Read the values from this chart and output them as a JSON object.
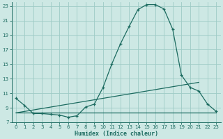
{
  "xlabel": "Humidex (Indice chaleur)",
  "background_color": "#cde8e4",
  "grid_color": "#9ecbc6",
  "line_color": "#1c6b60",
  "xlim": [
    -0.5,
    23.5
  ],
  "ylim": [
    7,
    23.5
  ],
  "xticks": [
    0,
    1,
    2,
    3,
    4,
    5,
    6,
    7,
    8,
    9,
    10,
    11,
    12,
    13,
    14,
    15,
    16,
    17,
    18,
    19,
    20,
    21,
    22,
    23
  ],
  "yticks": [
    7,
    9,
    11,
    13,
    15,
    17,
    19,
    21,
    23
  ],
  "line1_x": [
    0,
    1,
    2,
    3,
    4,
    5,
    6,
    7,
    8,
    9,
    10,
    11,
    12,
    13,
    14,
    15,
    16,
    17,
    18,
    19,
    20,
    21,
    22,
    23
  ],
  "line1_y": [
    10.3,
    9.3,
    8.2,
    8.2,
    8.1,
    8.0,
    7.7,
    7.9,
    9.1,
    9.5,
    11.8,
    15.0,
    17.8,
    20.2,
    22.5,
    23.2,
    23.2,
    22.6,
    19.8,
    13.5,
    11.8,
    11.3,
    9.5,
    8.5
  ],
  "line2_x": [
    0,
    23
  ],
  "line2_y": [
    8.3,
    8.3
  ],
  "line3_x": [
    0,
    21
  ],
  "line3_y": [
    8.3,
    12.5
  ]
}
